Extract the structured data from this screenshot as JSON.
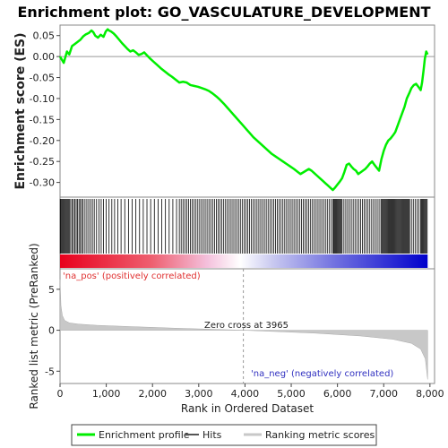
{
  "chart_data": {
    "type": "line",
    "title": "Enrichment plot: GO_VASCULATURE_DEVELOPMENT",
    "xlabel": "Rank in Ordered Dataset",
    "top_panel": {
      "ylabel": "Enrichment score (ES)",
      "ylim": [
        -0.335,
        0.075
      ],
      "yticks": [
        0.05,
        0.0,
        -0.05,
        -0.1,
        -0.15,
        -0.2,
        -0.25,
        -0.3
      ],
      "ytick_labels": [
        "0.05",
        "0.00",
        "-0.05",
        "-0.10",
        "-0.15",
        "-0.20",
        "-0.25",
        "-0.30"
      ],
      "grid": false,
      "series": [
        {
          "name": "Enrichment profile",
          "color": "#00ee00",
          "x": [
            0,
            80,
            150,
            200,
            260,
            320,
            380,
            440,
            500,
            560,
            620,
            680,
            720,
            760,
            820,
            880,
            940,
            990,
            1030,
            1060,
            1100,
            1160,
            1220,
            1280,
            1340,
            1400,
            1460,
            1520,
            1580,
            1640,
            1700,
            1760,
            1820,
            1880,
            1950,
            2020,
            2100,
            2180,
            2260,
            2340,
            2420,
            2500,
            2580,
            2660,
            2740,
            2820,
            2900,
            2980,
            3060,
            3140,
            3220,
            3300,
            3380,
            3460,
            3540,
            3620,
            3700,
            3780,
            3860,
            3940,
            4020,
            4100,
            4180,
            4260,
            4340,
            4420,
            4500,
            4580,
            4660,
            4740,
            4820,
            4900,
            4980,
            5060,
            5140,
            5200,
            5260,
            5320,
            5380,
            5440,
            5500,
            5560,
            5620,
            5680,
            5740,
            5800,
            5860,
            5900,
            5950,
            6000,
            6050,
            6100,
            6150,
            6200,
            6250,
            6300,
            6350,
            6400,
            6450,
            6500,
            6550,
            6600,
            6650,
            6700,
            6750,
            6800,
            6850,
            6900,
            6950,
            7000,
            7050,
            7100,
            7150,
            7200,
            7250,
            7300,
            7350,
            7400,
            7450,
            7500,
            7550,
            7600,
            7650,
            7700,
            7750,
            7800,
            7830,
            7860,
            7890,
            7920,
            7950
          ],
          "y": [
            0.0,
            -0.015,
            0.012,
            0.005,
            0.025,
            0.03,
            0.035,
            0.04,
            0.048,
            0.053,
            0.056,
            0.062,
            0.058,
            0.05,
            0.045,
            0.052,
            0.047,
            0.06,
            0.065,
            0.062,
            0.06,
            0.055,
            0.048,
            0.04,
            0.032,
            0.025,
            0.018,
            0.012,
            0.015,
            0.01,
            0.004,
            0.006,
            0.01,
            0.003,
            -0.005,
            -0.012,
            -0.02,
            -0.028,
            -0.035,
            -0.042,
            -0.048,
            -0.055,
            -0.062,
            -0.06,
            -0.062,
            -0.068,
            -0.07,
            -0.072,
            -0.075,
            -0.078,
            -0.082,
            -0.088,
            -0.095,
            -0.103,
            -0.112,
            -0.122,
            -0.132,
            -0.142,
            -0.152,
            -0.162,
            -0.172,
            -0.182,
            -0.192,
            -0.2,
            -0.208,
            -0.216,
            -0.224,
            -0.232,
            -0.238,
            -0.244,
            -0.25,
            -0.256,
            -0.262,
            -0.268,
            -0.275,
            -0.28,
            -0.276,
            -0.272,
            -0.268,
            -0.272,
            -0.278,
            -0.284,
            -0.29,
            -0.296,
            -0.302,
            -0.308,
            -0.314,
            -0.318,
            -0.312,
            -0.305,
            -0.298,
            -0.29,
            -0.275,
            -0.258,
            -0.255,
            -0.262,
            -0.268,
            -0.272,
            -0.28,
            -0.276,
            -0.272,
            -0.268,
            -0.262,
            -0.255,
            -0.25,
            -0.258,
            -0.265,
            -0.272,
            -0.245,
            -0.225,
            -0.21,
            -0.2,
            -0.195,
            -0.188,
            -0.18,
            -0.165,
            -0.15,
            -0.135,
            -0.12,
            -0.1,
            -0.088,
            -0.075,
            -0.068,
            -0.065,
            -0.072,
            -0.08,
            -0.062,
            -0.035,
            -0.005,
            0.012,
            0.005
          ]
        }
      ],
      "hits": [
        5,
        20,
        40,
        60,
        80,
        100,
        120,
        140,
        160,
        180,
        200,
        230,
        260,
        290,
        320,
        350,
        380,
        410,
        440,
        470,
        500,
        540,
        580,
        620,
        660,
        700,
        740,
        790,
        840,
        890,
        940,
        1000,
        1060,
        1120,
        1180,
        1250,
        1320,
        1400,
        1480,
        1560,
        1640,
        1720,
        1800,
        1880,
        1960,
        2040,
        2120,
        2200,
        2280,
        2360,
        2440,
        2520,
        2580,
        2620,
        2660,
        2700,
        2740,
        2780,
        2820,
        2860,
        2900,
        2940,
        2980,
        3020,
        3060,
        3100,
        3140,
        3180,
        3220,
        3260,
        3300,
        3340,
        3380,
        3420,
        3460,
        3500,
        3540,
        3580,
        3620,
        3660,
        3700,
        3740,
        3780,
        3820,
        3860,
        3900,
        3940,
        3980,
        4020,
        4060,
        4100,
        4140,
        4180,
        4220,
        4260,
        4300,
        4340,
        4380,
        4420,
        4460,
        4500,
        4540,
        4580,
        4620,
        4660,
        4700,
        4740,
        4780,
        4820,
        4860,
        4900,
        4940,
        4980,
        5020,
        5060,
        5100,
        5140,
        5180,
        5220,
        5260,
        5300,
        5340,
        5380,
        5420,
        5460,
        5500,
        5540,
        5580,
        5620,
        5660,
        5700,
        5740,
        5780,
        5820,
        5860,
        5900,
        5920,
        5940,
        5960,
        5980,
        6000,
        6020,
        6040,
        6060,
        6080,
        6100,
        6140,
        6180,
        6220,
        6260,
        6300,
        6340,
        6380,
        6420,
        6460,
        6500,
        6540,
        6580,
        6620,
        6660,
        6700,
        6740,
        6780,
        6820,
        6860,
        6900,
        6940,
        6960,
        6980,
        7000,
        7020,
        7040,
        7060,
        7080,
        7100,
        7120,
        7140,
        7160,
        7180,
        7200,
        7220,
        7240,
        7260,
        7280,
        7300,
        7320,
        7340,
        7360,
        7380,
        7400,
        7420,
        7440,
        7460,
        7480,
        7500,
        7520,
        7540,
        7560,
        7600,
        7640,
        7680,
        7720,
        7760,
        7800,
        7820,
        7840,
        7860,
        7880,
        7900,
        7920,
        7940
      ]
    },
    "bottom_panel": {
      "ylabel": "Ranked list metric (PreRanked)",
      "ylim": [
        -6.5,
        7.5
      ],
      "yticks": [
        5,
        0,
        -5
      ],
      "ytick_labels": [
        "5",
        "0",
        "-5"
      ],
      "label_pos": "'na_pos' (positively correlated)",
      "label_neg": "'na_neg' (negatively correlated)",
      "zero_cross_label": "Zero cross at 3965",
      "zero_cross": 3965,
      "metric_x": [
        0,
        20,
        50,
        100,
        200,
        400,
        800,
        1500,
        2500,
        3500,
        3965,
        4500,
        5500,
        6500,
        7200,
        7600,
        7800,
        7900,
        7950
      ],
      "metric_y": [
        6.2,
        3.0,
        1.8,
        1.2,
        0.9,
        0.75,
        0.6,
        0.45,
        0.25,
        0.08,
        0.0,
        -0.12,
        -0.35,
        -0.7,
        -1.1,
        -1.6,
        -2.3,
        -3.5,
        -6.0
      ]
    },
    "xlim": [
      0,
      8100
    ],
    "xticks": [
      0,
      1000,
      2000,
      3000,
      4000,
      5000,
      6000,
      7000,
      8000
    ],
    "xtick_labels": [
      "0",
      "1,000",
      "2,000",
      "3,000",
      "4,000",
      "5,000",
      "6,000",
      "7,000",
      "8,000"
    ],
    "legend": {
      "placement": "bottom",
      "entries": [
        "Enrichment profile",
        "Hits",
        "Ranking metric scores"
      ]
    },
    "colors": {
      "profile": "#00ee00",
      "hits": "#000000",
      "heat_pos": "#e8001c",
      "heat_mid": "#ffffff",
      "heat_neg": "#0000cc",
      "metric_fill": "#c8c8c8",
      "label_pos": "#e03030",
      "label_neg": "#3030c0"
    }
  }
}
